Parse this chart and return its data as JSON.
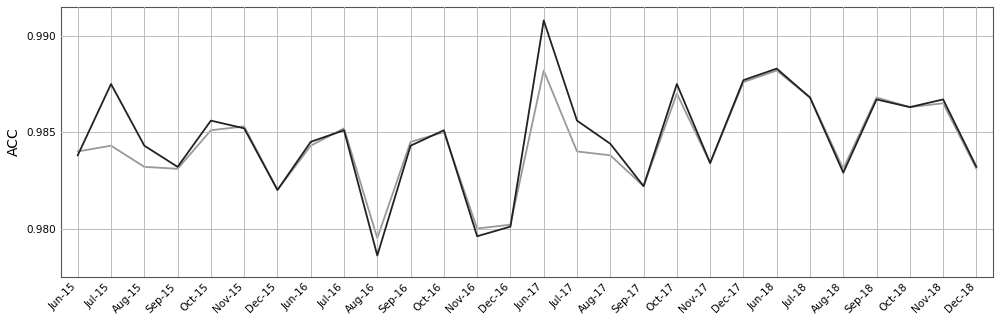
{
  "x_labels": [
    "Jun-15",
    "Jul-15",
    "Aug-15",
    "Sep-15",
    "Oct-15",
    "Nov-15",
    "Dec-15",
    "Jun-16",
    "Jul-16",
    "Aug-16",
    "Sep-16",
    "Oct-16",
    "Nov-16",
    "Dec-16",
    "Jun-17",
    "Jul-17",
    "Aug-17",
    "Sep-17",
    "Oct-17",
    "Nov-17",
    "Dec-17",
    "Jun-18",
    "Jul-18",
    "Aug-18",
    "Sep-18",
    "Oct-18",
    "Nov-18",
    "Dec-18"
  ],
  "series1": [
    0.9838,
    0.9875,
    0.9843,
    0.9832,
    0.9856,
    0.9852,
    0.982,
    0.9845,
    0.9851,
    0.9786,
    0.9843,
    0.9851,
    0.9796,
    0.9801,
    0.9908,
    0.9856,
    0.9844,
    0.9822,
    0.9875,
    0.9834,
    0.9877,
    0.9883,
    0.9868,
    0.9829,
    0.9867,
    0.9863,
    0.9867,
    0.9832
  ],
  "series2": [
    0.984,
    0.9843,
    0.9832,
    0.9831,
    0.9851,
    0.9853,
    0.982,
    0.9843,
    0.9852,
    0.9795,
    0.9845,
    0.985,
    0.98,
    0.9802,
    0.9882,
    0.984,
    0.9838,
    0.9822,
    0.987,
    0.9834,
    0.9876,
    0.9882,
    0.9868,
    0.9831,
    0.9868,
    0.9863,
    0.9865,
    0.9831
  ],
  "line1_color": "#222222",
  "line2_color": "#999999",
  "ylabel": "ACC",
  "ylim": [
    0.9775,
    0.9915
  ],
  "yticks": [
    0.98,
    0.985,
    0.99
  ],
  "grid_color": "#bbbbbb",
  "bg_color": "#ffffff",
  "linewidth": 1.3,
  "figsize": [
    10.0,
    3.22
  ],
  "dpi": 100,
  "tick_fontsize": 7.5,
  "ylabel_fontsize": 10
}
